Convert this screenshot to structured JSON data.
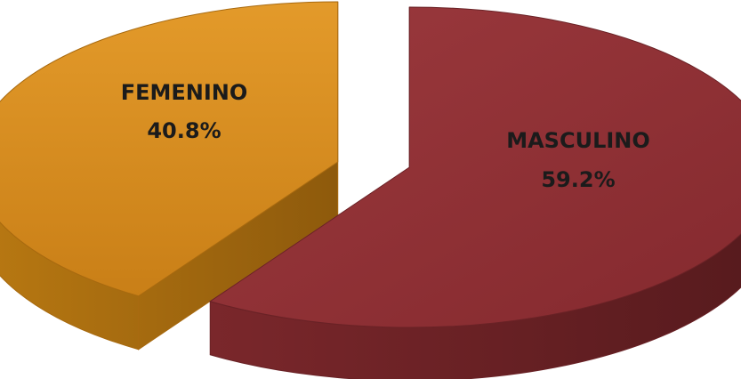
{
  "chart_data": {
    "type": "pie",
    "style": "3d-exploded",
    "slices": [
      {
        "label": "FEMENINO",
        "value": 40.8,
        "value_label": "40.8%",
        "color": "#D88D1E",
        "side_color": "#A86A10"
      },
      {
        "label": "MASCULINO",
        "value": 59.2,
        "value_label": "59.2%",
        "color": "#8E3236",
        "side_color": "#6A2226"
      }
    ],
    "legend": "none"
  }
}
